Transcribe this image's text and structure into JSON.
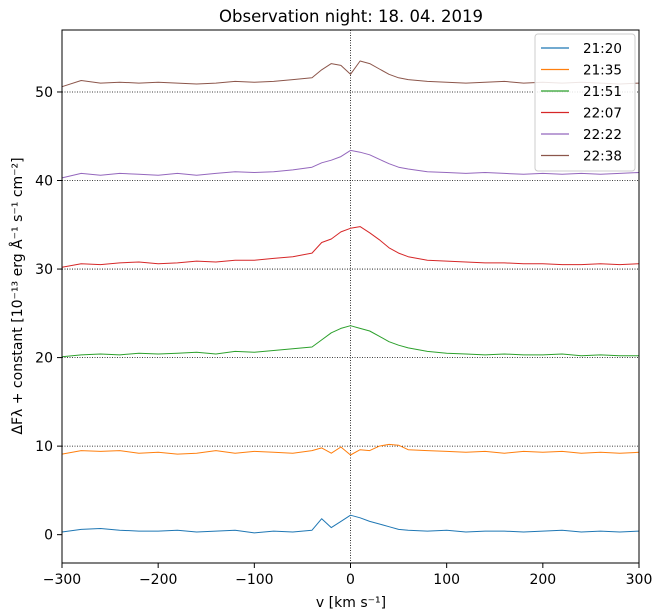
{
  "chart_data": {
    "type": "line",
    "title": "Observation night: 18. 04. 2019",
    "xlabel": "v [km s⁻¹]",
    "ylabel": "ΔFλ + constant [10⁻¹³ erg Å⁻¹ s⁻¹ cm⁻²]",
    "xlim": [
      -300,
      300
    ],
    "ylim": [
      -3.2,
      57
    ],
    "xticks": [
      -300,
      -200,
      -100,
      0,
      100,
      200,
      300
    ],
    "xtick_labels": [
      "−300",
      "−200",
      "−100",
      "0",
      "100",
      "200",
      "300"
    ],
    "yticks": [
      0,
      10,
      20,
      30,
      40,
      50
    ],
    "ytick_labels": [
      "0",
      "10",
      "20",
      "30",
      "40",
      "50"
    ],
    "reference_lines": {
      "horizontal": [
        10,
        20,
        30,
        40,
        50
      ],
      "vertical": [
        0
      ],
      "style": "dotted"
    },
    "legend_position": "top-right",
    "grid": false,
    "x": [
      -300,
      -280,
      -260,
      -240,
      -220,
      -200,
      -180,
      -160,
      -140,
      -120,
      -100,
      -80,
      -60,
      -40,
      -30,
      -20,
      -10,
      0,
      10,
      20,
      30,
      40,
      50,
      60,
      80,
      100,
      120,
      140,
      160,
      180,
      200,
      220,
      240,
      260,
      280,
      300
    ],
    "series": [
      {
        "name": "21:20",
        "color": "#1f77b4",
        "values": [
          0.3,
          0.6,
          0.7,
          0.5,
          0.4,
          0.4,
          0.5,
          0.3,
          0.4,
          0.5,
          0.2,
          0.4,
          0.3,
          0.5,
          1.8,
          0.8,
          1.5,
          2.2,
          1.9,
          1.5,
          1.2,
          0.9,
          0.6,
          0.5,
          0.4,
          0.5,
          0.3,
          0.4,
          0.4,
          0.3,
          0.4,
          0.5,
          0.3,
          0.4,
          0.3,
          0.4
        ]
      },
      {
        "name": "21:35",
        "color": "#ff7f0e",
        "values": [
          9.1,
          9.5,
          9.4,
          9.5,
          9.2,
          9.3,
          9.1,
          9.2,
          9.5,
          9.2,
          9.4,
          9.3,
          9.2,
          9.5,
          9.8,
          9.2,
          9.9,
          9.0,
          9.6,
          9.5,
          10.0,
          10.2,
          10.1,
          9.6,
          9.5,
          9.4,
          9.3,
          9.4,
          9.2,
          9.4,
          9.3,
          9.4,
          9.2,
          9.3,
          9.2,
          9.3
        ]
      },
      {
        "name": "21:51",
        "color": "#2ca02c",
        "values": [
          20.1,
          20.3,
          20.4,
          20.3,
          20.5,
          20.4,
          20.5,
          20.6,
          20.4,
          20.7,
          20.6,
          20.8,
          21.0,
          21.2,
          22.0,
          22.8,
          23.3,
          23.6,
          23.3,
          23.0,
          22.4,
          21.8,
          21.4,
          21.1,
          20.7,
          20.5,
          20.4,
          20.3,
          20.4,
          20.3,
          20.3,
          20.4,
          20.2,
          20.3,
          20.2,
          20.2
        ]
      },
      {
        "name": "22:07",
        "color": "#d62728",
        "values": [
          30.2,
          30.6,
          30.5,
          30.7,
          30.8,
          30.6,
          30.7,
          30.9,
          30.8,
          31.0,
          31.0,
          31.2,
          31.4,
          31.8,
          33.0,
          33.4,
          34.2,
          34.6,
          34.8,
          34.1,
          33.3,
          32.4,
          31.8,
          31.4,
          31.0,
          30.9,
          30.8,
          30.7,
          30.7,
          30.6,
          30.6,
          30.5,
          30.5,
          30.6,
          30.5,
          30.6
        ]
      },
      {
        "name": "22:22",
        "color": "#9467bd",
        "values": [
          40.3,
          40.8,
          40.6,
          40.8,
          40.7,
          40.6,
          40.8,
          40.6,
          40.8,
          41.0,
          40.9,
          41.0,
          41.2,
          41.5,
          42.0,
          42.3,
          42.7,
          43.4,
          43.2,
          42.9,
          42.4,
          41.9,
          41.5,
          41.3,
          41.0,
          40.9,
          40.8,
          40.9,
          40.8,
          40.7,
          40.8,
          40.7,
          40.8,
          40.7,
          40.8,
          40.9
        ]
      },
      {
        "name": "22:38",
        "color": "#8c564b",
        "values": [
          50.6,
          51.3,
          51.0,
          51.1,
          51.0,
          51.1,
          51.0,
          50.9,
          51.0,
          51.2,
          51.1,
          51.2,
          51.4,
          51.6,
          52.5,
          53.2,
          53.0,
          52.0,
          53.5,
          53.2,
          52.6,
          52.0,
          51.6,
          51.4,
          51.2,
          51.1,
          51.0,
          51.1,
          51.2,
          51.0,
          51.1,
          51.0,
          51.1,
          51.0,
          50.9,
          51.0
        ]
      }
    ]
  }
}
